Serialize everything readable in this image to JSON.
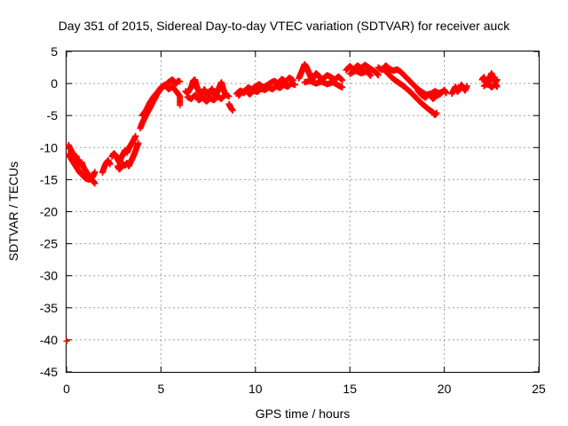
{
  "chart_data": {
    "type": "scatter",
    "title": "Day 351 of 2015, Sidereal Day-to-day VTEC variation (SDTVAR) for receiver auck",
    "xlabel": "GPS time / hours",
    "ylabel": "SDTVAR / TECUs",
    "xlim": [
      0,
      25
    ],
    "ylim": [
      -45,
      5
    ],
    "xticks": [
      0,
      5,
      10,
      15,
      20,
      25
    ],
    "yticks": [
      5,
      0,
      -5,
      -10,
      -15,
      -20,
      -25,
      -30,
      -35,
      -40,
      -45
    ],
    "grid": true,
    "marker": "plus",
    "color": "#ff0000",
    "series": [
      {
        "name": "SDTVAR",
        "segments": [
          [
            [
              0.1,
              -9.6
            ],
            [
              0.2,
              -10.2
            ],
            [
              0.3,
              -10.8
            ],
            [
              0.4,
              -11.5
            ],
            [
              0.5,
              -11.3
            ],
            [
              0.6,
              -12.0
            ],
            [
              0.7,
              -12.6
            ],
            [
              0.8,
              -12.3
            ],
            [
              0.9,
              -13.1
            ],
            [
              1.0,
              -13.6
            ],
            [
              1.1,
              -14.0
            ],
            [
              1.2,
              -14.6
            ],
            [
              1.3,
              -14.9
            ],
            [
              1.4,
              -15.2
            ],
            [
              1.5,
              -15.6
            ]
          ],
          [
            [
              0.1,
              -11.0
            ],
            [
              0.25,
              -11.8
            ],
            [
              0.4,
              -12.5
            ],
            [
              0.55,
              -13.2
            ],
            [
              0.7,
              -13.9
            ],
            [
              0.85,
              -14.3
            ],
            [
              1.0,
              -14.8
            ],
            [
              1.2,
              -15.0
            ],
            [
              1.4,
              -14.5
            ],
            [
              1.5,
              -13.8
            ]
          ],
          [
            [
              1.9,
              -13.9
            ],
            [
              2.0,
              -13.0
            ],
            [
              2.1,
              -12.4
            ],
            [
              2.2,
              -12.0
            ],
            [
              2.3,
              -12.6
            ]
          ],
          [
            [
              2.4,
              -11.4
            ],
            [
              2.5,
              -10.9
            ],
            [
              2.6,
              -11.2
            ],
            [
              2.7,
              -11.8
            ],
            [
              2.8,
              -12.3
            ],
            [
              2.9,
              -11.5
            ],
            [
              3.0,
              -11.0
            ],
            [
              3.1,
              -10.4
            ],
            [
              3.2,
              -10.8
            ],
            [
              3.3,
              -10.1
            ],
            [
              3.4,
              -9.6
            ],
            [
              3.5,
              -9.1
            ],
            [
              3.6,
              -8.6
            ],
            [
              3.65,
              -8.2
            ]
          ],
          [
            [
              2.7,
              -12.9
            ],
            [
              2.8,
              -13.4
            ],
            [
              2.9,
              -13.0
            ],
            [
              3.0,
              -12.6
            ],
            [
              3.1,
              -12.8
            ],
            [
              3.2,
              -12.4
            ],
            [
              3.3,
              -12.9
            ],
            [
              3.4,
              -12.2
            ],
            [
              3.5,
              -11.6
            ],
            [
              3.6,
              -10.9
            ],
            [
              3.7,
              -10.1
            ],
            [
              3.8,
              -9.3
            ]
          ],
          [
            [
              3.9,
              -7.0
            ],
            [
              4.0,
              -6.2
            ],
            [
              4.1,
              -5.6
            ],
            [
              4.2,
              -5.0
            ],
            [
              4.3,
              -4.4
            ],
            [
              4.4,
              -3.9
            ],
            [
              4.5,
              -3.3
            ],
            [
              4.6,
              -2.7
            ],
            [
              4.7,
              -2.2
            ],
            [
              4.8,
              -1.6
            ],
            [
              4.9,
              -1.2
            ],
            [
              5.0,
              -0.8
            ],
            [
              5.1,
              -0.5
            ],
            [
              5.2,
              -0.3
            ],
            [
              5.3,
              -0.1
            ],
            [
              5.4,
              0.2
            ],
            [
              5.5,
              0.4
            ],
            [
              5.6,
              0.6
            ],
            [
              5.7,
              0.3
            ],
            [
              5.8,
              0.0
            ],
            [
              5.9,
              0.4
            ],
            [
              6.0,
              0.3
            ]
          ],
          [
            [
              4.0,
              -5.0
            ],
            [
              4.2,
              -4.2
            ],
            [
              4.4,
              -3.0
            ],
            [
              4.6,
              -2.1
            ],
            [
              4.8,
              -1.4
            ],
            [
              5.0,
              -0.6
            ],
            [
              5.2,
              -0.2
            ],
            [
              5.4,
              -0.9
            ],
            [
              5.6,
              -0.5
            ],
            [
              5.8,
              -1.2
            ],
            [
              6.0,
              -2.0
            ],
            [
              6.0,
              -3.4
            ]
          ],
          [
            [
              6.3,
              -1.2
            ],
            [
              6.4,
              -1.5
            ],
            [
              6.5,
              -1.0
            ],
            [
              6.6,
              -0.6
            ],
            [
              6.7,
              0.4
            ],
            [
              6.8,
              0.6
            ],
            [
              6.9,
              -0.5
            ],
            [
              7.0,
              -1.2
            ],
            [
              7.1,
              -1.8
            ],
            [
              7.2,
              -1.4
            ],
            [
              7.3,
              -0.9
            ],
            [
              7.4,
              -1.6
            ],
            [
              7.5,
              -2.0
            ],
            [
              7.6,
              -1.3
            ],
            [
              7.7,
              -0.8
            ],
            [
              7.8,
              -1.5
            ],
            [
              7.9,
              -1.9
            ],
            [
              8.0,
              -1.2
            ],
            [
              8.1,
              -0.5
            ],
            [
              8.2,
              0.2
            ],
            [
              8.3,
              -0.9
            ],
            [
              8.4,
              -1.6
            ]
          ],
          [
            [
              6.4,
              -2.1
            ],
            [
              6.6,
              -2.4
            ],
            [
              6.8,
              -1.8
            ],
            [
              7.0,
              -2.6
            ],
            [
              7.2,
              -2.2
            ],
            [
              7.4,
              -2.8
            ],
            [
              7.6,
              -2.3
            ],
            [
              7.8,
              -2.6
            ],
            [
              8.0,
              -2.0
            ],
            [
              8.2,
              -2.4
            ],
            [
              8.4,
              -1.7
            ],
            [
              8.6,
              -2.0
            ]
          ],
          [
            [
              8.6,
              -3.2
            ],
            [
              8.7,
              -3.8
            ],
            [
              8.8,
              -4.2
            ]
          ],
          [
            [
              9.0,
              -1.6
            ],
            [
              9.2,
              -1.1
            ],
            [
              9.4,
              -1.5
            ],
            [
              9.6,
              -0.6
            ],
            [
              9.8,
              -0.9
            ],
            [
              10.0,
              -0.5
            ],
            [
              10.2,
              -0.1
            ],
            [
              10.4,
              -0.6
            ],
            [
              10.6,
              -0.3
            ],
            [
              10.8,
              0.1
            ],
            [
              11.0,
              0.4
            ],
            [
              11.2,
              0.0
            ],
            [
              11.4,
              0.7
            ],
            [
              11.6,
              0.3
            ],
            [
              11.8,
              0.9
            ],
            [
              12.0,
              0.5
            ]
          ],
          [
            [
              9.1,
              -1.9
            ],
            [
              9.3,
              -1.3
            ],
            [
              9.5,
              -1.1
            ],
            [
              9.7,
              -1.7
            ],
            [
              9.9,
              -1.1
            ],
            [
              10.1,
              -1.3
            ],
            [
              10.3,
              -0.8
            ],
            [
              10.5,
              -1.0
            ],
            [
              10.7,
              -0.6
            ],
            [
              10.9,
              -0.9
            ],
            [
              11.1,
              -0.4
            ],
            [
              11.3,
              -0.7
            ],
            [
              11.5,
              -0.2
            ],
            [
              11.7,
              -0.5
            ],
            [
              11.9,
              0.0
            ],
            [
              12.1,
              -0.2
            ]
          ],
          [
            [
              12.3,
              0.8
            ],
            [
              12.4,
              1.5
            ],
            [
              12.5,
              2.2
            ],
            [
              12.6,
              3.0
            ],
            [
              12.7,
              2.6
            ],
            [
              12.8,
              1.9
            ],
            [
              12.9,
              1.2
            ],
            [
              13.0,
              0.6
            ],
            [
              13.1,
              1.0
            ],
            [
              13.2,
              1.6
            ],
            [
              13.4,
              1.1
            ],
            [
              13.5,
              0.5
            ],
            [
              13.6,
              0.8
            ],
            [
              13.8,
              1.3
            ],
            [
              14.0,
              1.0
            ],
            [
              14.2,
              0.6
            ],
            [
              14.4,
              1.1
            ],
            [
              14.6,
              0.5
            ]
          ],
          [
            [
              12.6,
              0.2
            ],
            [
              12.9,
              0.4
            ],
            [
              13.2,
              0.0
            ],
            [
              13.5,
              0.3
            ],
            [
              13.8,
              -0.1
            ],
            [
              14.1,
              0.2
            ],
            [
              14.4,
              -0.3
            ],
            [
              14.6,
              -0.6
            ]
          ],
          [
            [
              14.8,
              2.1
            ],
            [
              15.0,
              2.7
            ],
            [
              15.2,
              2.2
            ],
            [
              15.4,
              2.8
            ],
            [
              15.6,
              2.4
            ],
            [
              15.8,
              2.9
            ],
            [
              16.0,
              2.5
            ],
            [
              16.2,
              2.1
            ],
            [
              16.4,
              1.7
            ],
            [
              16.5,
              1.3
            ]
          ],
          [
            [
              15.0,
              1.5
            ],
            [
              15.3,
              2.0
            ],
            [
              15.6,
              1.6
            ],
            [
              15.9,
              1.9
            ],
            [
              16.1,
              1.2
            ]
          ],
          [
            [
              16.5,
              2.5
            ],
            [
              16.7,
              2.1
            ],
            [
              16.9,
              2.8
            ],
            [
              17.1,
              2.3
            ],
            [
              17.3,
              2.0
            ],
            [
              17.5,
              2.2
            ],
            [
              17.7,
              1.8
            ],
            [
              17.9,
              1.2
            ],
            [
              18.1,
              0.6
            ],
            [
              18.3,
              0.0
            ],
            [
              18.5,
              -0.6
            ],
            [
              18.7,
              -1.1
            ],
            [
              18.9,
              -1.5
            ],
            [
              19.1,
              -1.8
            ],
            [
              19.3,
              -1.6
            ],
            [
              19.5,
              -1.2
            ],
            [
              19.7,
              -1.5
            ],
            [
              19.9,
              -1.3
            ]
          ],
          [
            [
              16.8,
              2.2
            ],
            [
              17.0,
              1.6
            ],
            [
              17.2,
              1.0
            ],
            [
              17.4,
              0.5
            ],
            [
              17.6,
              0.1
            ],
            [
              17.8,
              -0.3
            ],
            [
              18.0,
              -0.8
            ],
            [
              18.2,
              -1.3
            ],
            [
              18.4,
              -1.9
            ],
            [
              18.6,
              -2.5
            ],
            [
              18.8,
              -3.1
            ],
            [
              19.0,
              -3.6
            ],
            [
              19.2,
              -4.1
            ],
            [
              19.4,
              -4.5
            ],
            [
              19.5,
              -4.9
            ],
            [
              19.6,
              -4.6
            ]
          ],
          [
            [
              18.6,
              -1.1
            ],
            [
              18.8,
              -1.8
            ],
            [
              19.0,
              -2.2
            ],
            [
              19.2,
              -1.6
            ],
            [
              19.4,
              -2.4
            ],
            [
              19.6,
              -1.9
            ],
            [
              19.8,
              -1.6
            ],
            [
              20.0,
              -1.0
            ],
            [
              20.1,
              -1.5
            ]
          ],
          [
            [
              20.4,
              -1.6
            ],
            [
              20.5,
              -1.0
            ],
            [
              20.6,
              -0.5
            ],
            [
              20.7,
              -1.3
            ],
            [
              20.8,
              -0.8
            ],
            [
              20.9,
              -0.2
            ],
            [
              21.0,
              -0.6
            ],
            [
              21.1,
              -1.1
            ],
            [
              21.2,
              -0.4
            ]
          ],
          [
            [
              22.0,
              0.6
            ],
            [
              22.1,
              1.0
            ],
            [
              22.2,
              0.3
            ],
            [
              22.3,
              -0.2
            ],
            [
              22.4,
              0.8
            ],
            [
              22.5,
              1.6
            ],
            [
              22.6,
              0.9
            ],
            [
              22.7,
              0.2
            ],
            [
              22.8,
              0.6
            ]
          ],
          [
            [
              22.1,
              -0.4
            ],
            [
              22.3,
              0.1
            ],
            [
              22.5,
              -0.6
            ],
            [
              22.7,
              -0.1
            ],
            [
              22.8,
              -0.5
            ]
          ],
          [
            [
              0.0,
              -40.2
            ]
          ]
        ]
      }
    ]
  }
}
